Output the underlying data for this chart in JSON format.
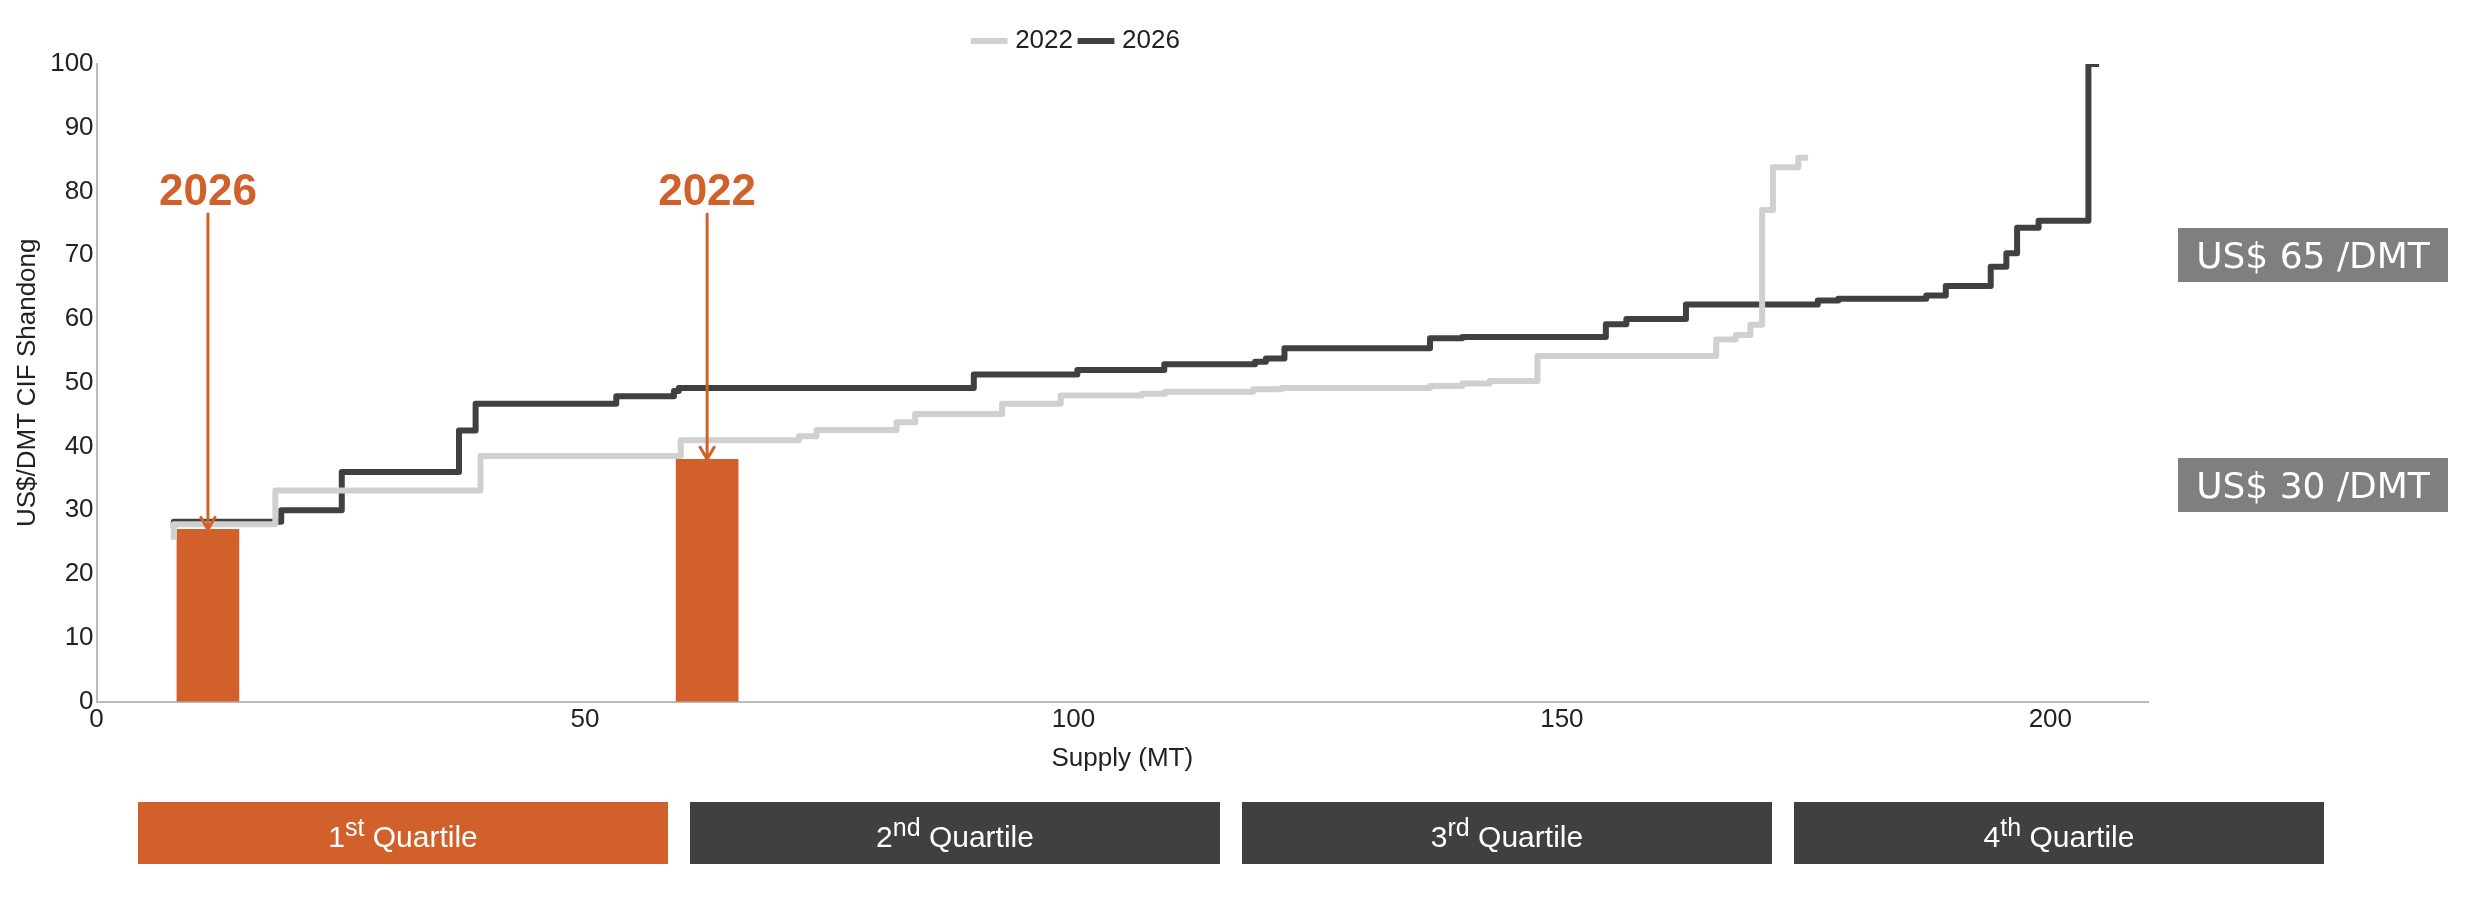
{
  "chart_data": {
    "type": "step",
    "xlabel": "Supply (MT)",
    "ylabel": "US$/DMT CIF Shandong",
    "xlim": [
      0,
      210
    ],
    "xticks": [
      0,
      50,
      100,
      150,
      200
    ],
    "ylim": [
      0,
      100
    ],
    "yticks": [
      0,
      10,
      20,
      30,
      40,
      50,
      60,
      70,
      80,
      90,
      100
    ],
    "grid": false,
    "legend": "top",
    "marker": "none",
    "series": [
      {
        "name": "2022",
        "color": "#d0d0d0",
        "x": [
          7.9,
          18.3,
          39.3,
          59.8,
          71.9,
          73.7,
          81.9,
          83.8,
          92.7,
          98.7,
          107.0,
          109.4,
          118.4,
          121.3,
          136.5,
          139.8,
          142.6,
          147.5,
          165.8,
          167.8,
          169.3,
          170.5,
          171.6,
          174.2,
          174.8,
          175.2
        ],
        "values": [
          25.4,
          27.8,
          33.1,
          38.5,
          41.0,
          41.6,
          42.6,
          43.8,
          45.1,
          46.7,
          48.0,
          48.3,
          48.6,
          49.0,
          49.2,
          49.5,
          49.9,
          50.3,
          54.2,
          56.8,
          57.5,
          59.1,
          77.1,
          83.8,
          85.3,
          85.3
        ]
      },
      {
        "name": "2026",
        "color": "#404040",
        "x": [
          7.9,
          18.9,
          25.1,
          37.1,
          38.8,
          53.2,
          59.1,
          59.6,
          89.8,
          100.4,
          109.3,
          118.6,
          119.7,
          121.6,
          136.5,
          139.8,
          154.5,
          156.6,
          162.7,
          176.2,
          178.3,
          187.3,
          189.3,
          193.9,
          195.5,
          196.6,
          198.8,
          203.9,
          205
        ],
        "values": [
          27.3,
          28.2,
          30.0,
          36.0,
          42.5,
          46.7,
          47.9,
          48.7,
          49.2,
          51.3,
          52.0,
          52.9,
          53.3,
          53.8,
          55.4,
          57.0,
          57.2,
          59.2,
          60.0,
          62.3,
          62.9,
          63.2,
          63.7,
          65.2,
          68.2,
          70.3,
          74.3,
          75.4,
          100
        ]
      },
      {
        "type": "bar",
        "color": "#d2602a",
        "x": [
          11.4,
          62.5
        ],
        "values": [
          27,
          38
        ]
      }
    ],
    "annotations": [
      {
        "text": "2026",
        "x": 11.4,
        "y": 27
      },
      {
        "text": "2022",
        "x": 62.5,
        "y": 38
      },
      "US$ 65 /DMT",
      "US$ 30 /DMT",
      "1$^{st}$ Quartile",
      "2$^{nd}$ Quartile",
      "3$^{rd}$ Quartile",
      "4$^{th}$ Quartile"
    ]
  }
}
